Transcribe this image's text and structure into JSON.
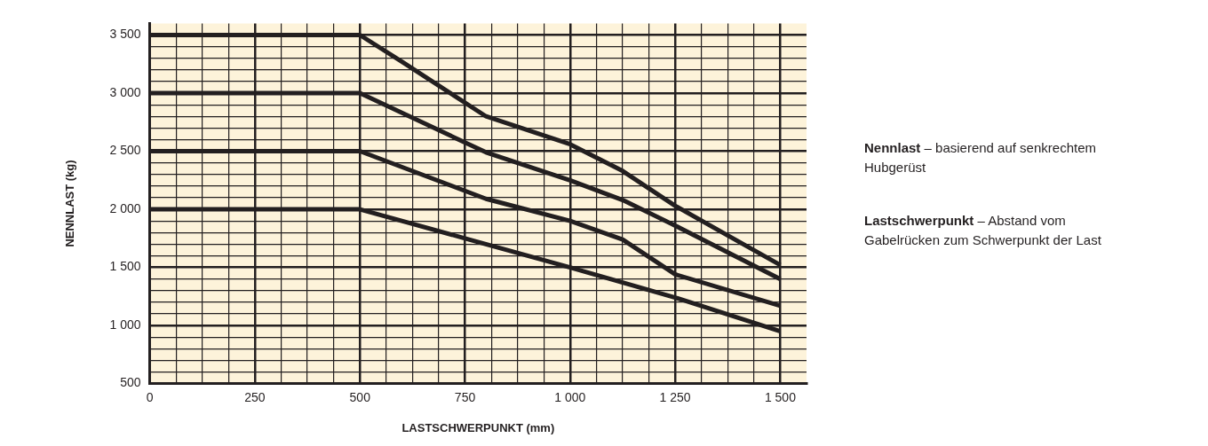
{
  "chart_data": {
    "type": "line",
    "xlabel": "LASTSCHWERPUNKT (mm)",
    "ylabel": "NENNLAST (kg)",
    "annotations": [
      "Nennlast – basierend auf senkrechtem Hubgerüst",
      "Lastschwerpunkt – Abstand vom Gabelrücken zum Schwerpunkt der Last"
    ],
    "series": [
      {
        "color": "#231f20",
        "x": [
          0,
          500,
          600,
          800,
          1000,
          1125,
          1250,
          1500
        ],
        "values": [
          3500,
          3500,
          3270,
          2800,
          2560,
          2330,
          2030,
          1520
        ]
      },
      {
        "color": "#231f20",
        "x": [
          0,
          500,
          800,
          1000,
          1125,
          1250,
          1500
        ],
        "values": [
          3000,
          3000,
          2490,
          2250,
          2080,
          1860,
          1400
        ]
      },
      {
        "color": "#231f20",
        "x": [
          0,
          500,
          800,
          1000,
          1125,
          1250,
          1500
        ],
        "values": [
          2500,
          2500,
          2090,
          1900,
          1740,
          1440,
          1170
        ]
      },
      {
        "color": "#231f20",
        "x": [
          0,
          500,
          750,
          1000,
          1250,
          1500
        ],
        "values": [
          2000,
          2000,
          1750,
          1500,
          1240,
          950
        ]
      }
    ],
    "xlim": [
      0,
      1562.5
    ],
    "ylim": [
      500,
      3600
    ],
    "xticks": [
      0,
      {
        "value": 62.5,
        "label": null
      },
      {
        "value": 125,
        "label": null
      },
      {
        "value": 187.5,
        "label": null
      },
      250,
      {
        "value": 312.5,
        "label": null
      },
      {
        "value": 375,
        "label": null
      },
      {
        "value": 437.5,
        "label": null
      },
      500,
      {
        "value": 562.5,
        "label": null
      },
      {
        "value": 625,
        "label": null
      },
      {
        "value": 687.5,
        "label": null
      },
      750,
      {
        "value": 812.5,
        "label": null
      },
      {
        "value": 875,
        "label": null
      },
      {
        "value": 937.5,
        "label": null
      },
      {
        "value": 1000,
        "label": "1 000"
      },
      {
        "value": 1062.5,
        "label": null
      },
      {
        "value": 1125,
        "label": null
      },
      {
        "value": 1187.5,
        "label": null
      },
      {
        "value": 1250,
        "label": "1 250"
      },
      {
        "value": 1312.5,
        "label": null
      },
      {
        "value": 1375,
        "label": null
      },
      {
        "value": 1437.5,
        "label": null
      },
      {
        "value": 1500,
        "label": "1 500"
      }
    ],
    "yticks": [
      500,
      {
        "value": 600,
        "label": null
      },
      {
        "value": 700,
        "label": null
      },
      {
        "value": 800,
        "label": null
      },
      {
        "value": 900,
        "label": null
      },
      {
        "value": 1000,
        "label": "1 000"
      },
      {
        "value": 1100,
        "label": null
      },
      {
        "value": 1200,
        "label": null
      },
      {
        "value": 1300,
        "label": null
      },
      {
        "value": 1400,
        "label": null
      },
      {
        "value": 1500,
        "label": "1 500"
      },
      {
        "value": 1600,
        "label": null
      },
      {
        "value": 1700,
        "label": null
      },
      {
        "value": 1800,
        "label": null
      },
      {
        "value": 1900,
        "label": null
      },
      {
        "value": 2000,
        "label": "2 000"
      },
      {
        "value": 2100,
        "label": null
      },
      {
        "value": 2200,
        "label": null
      },
      {
        "value": 2300,
        "label": null
      },
      {
        "value": 2400,
        "label": null
      },
      {
        "value": 2500,
        "label": "2 500"
      },
      {
        "value": 2600,
        "label": null
      },
      {
        "value": 2700,
        "label": null
      },
      {
        "value": 2800,
        "label": null
      },
      {
        "value": 2900,
        "label": null
      },
      {
        "value": 3000,
        "label": "3 000"
      },
      {
        "value": 3100,
        "label": null
      },
      {
        "value": 3200,
        "label": null
      },
      {
        "value": 3300,
        "label": null
      },
      {
        "value": 3400,
        "label": null
      },
      {
        "value": 3500,
        "label": "3 500"
      }
    ],
    "grid": true,
    "legend": false,
    "marker": "none",
    "line_style": "solid"
  }
}
